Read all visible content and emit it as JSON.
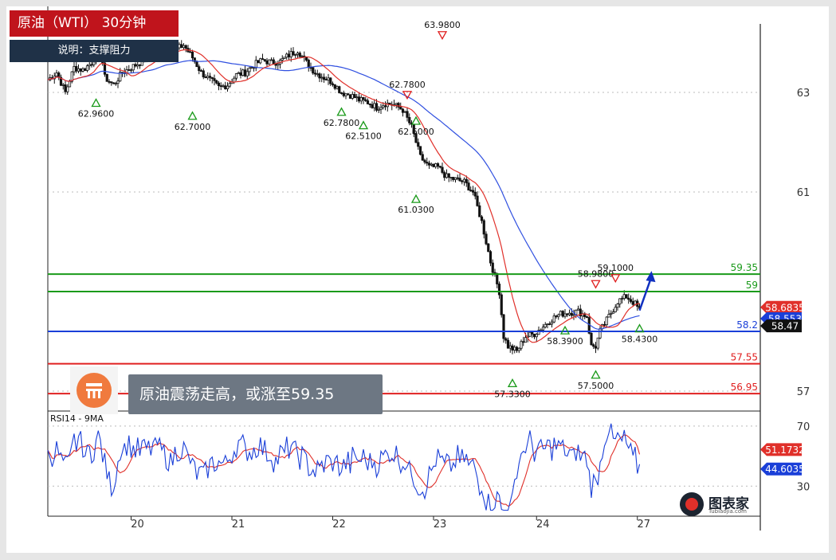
{
  "header": {
    "title": "原油（WTI） 30分钟",
    "note": "说明：支撑阻力"
  },
  "caption": {
    "text": "原油震荡走高，或涨至59.35"
  },
  "brand": {
    "name": "图表家",
    "url": "Tubiaojia.com"
  },
  "colors": {
    "title_bg": "#c0141c",
    "note_bg": "#1f3147",
    "ma_fast": "#e0302a",
    "ma_slow": "#3050e0",
    "resistance": "#1a9a1a",
    "support": "#e02020",
    "pivot": "#1a3fd8",
    "arrow": "#1030c0"
  },
  "chart_data": [
    {
      "type": "candlestick",
      "title": "原油（WTI） 30分钟",
      "x_ticks": [
        "20",
        "21",
        "22",
        "23",
        "24",
        "27"
      ],
      "y_ticks": [
        57,
        61,
        63
      ],
      "ylim": [
        56.6,
        64.6
      ],
      "grid": "horizontal dotted",
      "price_path": [
        [
          0,
          63.25
        ],
        [
          4,
          63.4
        ],
        [
          8,
          63.0
        ],
        [
          12,
          63.5
        ],
        [
          16,
          63.45
        ],
        [
          20,
          63.6
        ],
        [
          24,
          63.9
        ],
        [
          26,
          63.3
        ],
        [
          30,
          63.15
        ],
        [
          34,
          63.4
        ],
        [
          38,
          63.5
        ],
        [
          42,
          63.6
        ],
        [
          46,
          63.7
        ],
        [
          50,
          63.9
        ],
        [
          54,
          63.8
        ],
        [
          58,
          63.85
        ],
        [
          62,
          63.95
        ],
        [
          66,
          63.7
        ],
        [
          70,
          63.4
        ],
        [
          74,
          63.25
        ],
        [
          78,
          63.1
        ],
        [
          82,
          63.15
        ],
        [
          86,
          63.35
        ],
        [
          90,
          63.4
        ],
        [
          94,
          63.55
        ],
        [
          98,
          63.65
        ],
        [
          102,
          63.6
        ],
        [
          106,
          63.62
        ],
        [
          110,
          63.75
        ],
        [
          114,
          63.85
        ],
        [
          118,
          63.6
        ],
        [
          122,
          63.4
        ],
        [
          126,
          63.3
        ],
        [
          130,
          63.2
        ],
        [
          134,
          63.0
        ],
        [
          138,
          62.95
        ],
        [
          142,
          62.85
        ],
        [
          146,
          62.8
        ],
        [
          150,
          62.7
        ],
        [
          154,
          62.78
        ],
        [
          158,
          62.75
        ],
        [
          162,
          62.65
        ],
        [
          166,
          62.3
        ],
        [
          170,
          61.7
        ],
        [
          174,
          61.5
        ],
        [
          178,
          61.5
        ],
        [
          182,
          61.3
        ],
        [
          186,
          61.25
        ],
        [
          190,
          61.2
        ],
        [
          194,
          61.0
        ],
        [
          198,
          60.4
        ],
        [
          202,
          59.6
        ],
        [
          206,
          59.0
        ],
        [
          208,
          58.1
        ],
        [
          210,
          57.9
        ],
        [
          214,
          57.8
        ],
        [
          218,
          58.1
        ],
        [
          222,
          58.15
        ],
        [
          226,
          58.3
        ],
        [
          230,
          58.45
        ],
        [
          234,
          58.55
        ],
        [
          238,
          58.58
        ],
        [
          242,
          58.6
        ],
        [
          246,
          58.5
        ],
        [
          248,
          57.9
        ],
        [
          250,
          57.9
        ],
        [
          252,
          58.2
        ],
        [
          256,
          58.5
        ],
        [
          260,
          58.8
        ],
        [
          264,
          58.9
        ],
        [
          268,
          58.75
        ],
        [
          270,
          58.62
        ]
      ],
      "price_levels": [
        {
          "label": "59.35",
          "value": 59.35,
          "role": "resistance"
        },
        {
          "label": "59",
          "value": 59.0,
          "role": "resistance"
        },
        {
          "label": "58.2",
          "value": 58.2,
          "role": "pivot"
        },
        {
          "label": "57.55",
          "value": 57.55,
          "role": "support"
        },
        {
          "label": "56.95",
          "value": 56.95,
          "role": "support"
        }
      ],
      "swing_labels": [
        {
          "text": "62.9600",
          "value": 62.96,
          "kind": "low"
        },
        {
          "text": "62.7000",
          "value": 62.7,
          "kind": "low"
        },
        {
          "text": "62.6000",
          "value": 62.6,
          "kind": "low"
        },
        {
          "text": "63.9800",
          "value": 63.98,
          "kind": "high"
        },
        {
          "text": "62.7800",
          "value": 62.78,
          "kind": "low"
        },
        {
          "text": "62.5100",
          "value": 62.51,
          "kind": "low"
        },
        {
          "text": "62.7800",
          "value": 62.78,
          "kind": "high"
        },
        {
          "text": "61.0300",
          "value": 61.03,
          "kind": "low"
        },
        {
          "text": "57.3300",
          "value": 57.33,
          "kind": "low"
        },
        {
          "text": "58.3900",
          "value": 58.39,
          "kind": "low"
        },
        {
          "text": "58.9800",
          "value": 58.98,
          "kind": "high"
        },
        {
          "text": "59.1000",
          "value": 59.1,
          "kind": "high"
        },
        {
          "text": "57.5000",
          "value": 57.5,
          "kind": "low"
        },
        {
          "text": "58.4300",
          "value": 58.43,
          "kind": "low"
        }
      ],
      "current_tags": [
        {
          "text": "58.6835",
          "value": 58.6835,
          "color": "#e0302a"
        },
        {
          "text": "58.553",
          "value": 58.553,
          "color": "#1a3fd8"
        },
        {
          "text": "58.47",
          "value": 58.47,
          "color": "#111111"
        }
      ],
      "projection": {
        "from": 58.62,
        "to": 59.35
      }
    },
    {
      "type": "line",
      "title": "RSI14 - 9MA",
      "y_ticks": [
        30,
        70
      ],
      "ylim": [
        10,
        80
      ],
      "series": [
        {
          "value": 51.1732,
          "color": "#e0302a"
        },
        {
          "value": 44.6035,
          "color": "#1a3fd8"
        }
      ],
      "current_tags": [
        {
          "text": "51.1732",
          "value": 51.1732,
          "color": "#e0302a"
        },
        {
          "text": "44.6035",
          "value": 44.6035,
          "color": "#1a3fd8"
        }
      ]
    }
  ]
}
